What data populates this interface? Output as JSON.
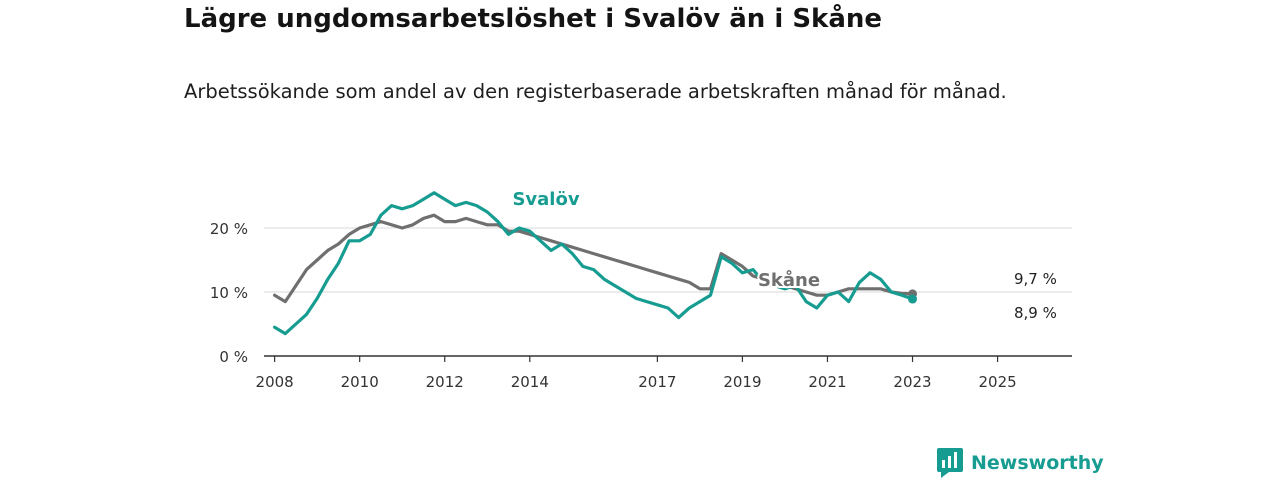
{
  "title": "Lägre ungdomsarbetslöshet i Svalöv än i Skåne",
  "subtitle": "Arbetssökande som andel av den registerbaserade arbetskraften månad för månad.",
  "brand": {
    "name": "Newsworthy",
    "color": "#169c91"
  },
  "chart_data": {
    "type": "line",
    "x_start": 2008.0,
    "x_step": 0.25,
    "xlim": [
      2007.75,
      2026.75
    ],
    "ylim": [
      0,
      20
    ],
    "y_ticks": [
      0,
      10,
      20
    ],
    "y_tick_labels": [
      "0 %",
      "10 %",
      "20 %"
    ],
    "x_ticks": [
      2008,
      2010,
      2012,
      2014,
      2017,
      2019,
      2021,
      2023,
      2025
    ],
    "x_tick_labels": [
      "2008",
      "2010",
      "2012",
      "2014",
      "2017",
      "2019",
      "2021",
      "2023",
      "2025"
    ],
    "grid": true,
    "series": [
      {
        "name": "Svalöv",
        "color": "#169c91",
        "label": "Svalöv",
        "end_label": "8,9 %",
        "values": [
          4.5,
          3.5,
          5.0,
          6.5,
          9.0,
          12.0,
          14.5,
          18.0,
          18.0,
          19.0,
          22.0,
          23.5,
          23.0,
          23.5,
          24.5,
          25.5,
          24.5,
          23.5,
          24.0,
          23.5,
          22.5,
          21.0,
          19.0,
          20.0,
          19.5,
          18.0,
          16.5,
          17.5,
          16.0,
          14.0,
          13.5,
          12.0,
          11.0,
          10.0,
          9.0,
          8.5,
          8.0,
          7.5,
          6.0,
          7.5,
          8.5,
          9.5,
          15.5,
          14.5,
          13.0,
          13.5,
          11.5,
          11.0,
          10.5,
          11.0,
          8.5,
          7.5,
          9.5,
          10.0,
          8.5,
          11.5,
          13.0,
          12.0,
          10.0,
          9.5,
          8.9
        ]
      },
      {
        "name": "Skåne",
        "color": "#6f6f6f",
        "label": "Skåne",
        "end_label": "9,7 %",
        "values": [
          9.5,
          8.5,
          11.0,
          13.5,
          15.0,
          16.5,
          17.5,
          19.0,
          20.0,
          20.5,
          21.0,
          20.5,
          20.0,
          20.5,
          21.5,
          22.0,
          21.0,
          21.0,
          21.5,
          21.0,
          20.5,
          20.5,
          19.5,
          19.5,
          19.0,
          18.5,
          18.0,
          17.5,
          17.0,
          16.5,
          16.0,
          15.5,
          15.0,
          14.5,
          14.0,
          13.5,
          13.0,
          12.5,
          12.0,
          11.5,
          10.5,
          10.5,
          16.0,
          15.0,
          14.0,
          12.5,
          12.0,
          11.5,
          11.0,
          10.5,
          10.0,
          9.5,
          9.5,
          10.0,
          10.5,
          10.5,
          10.5,
          10.5,
          10.0,
          9.8,
          9.7
        ]
      }
    ]
  }
}
